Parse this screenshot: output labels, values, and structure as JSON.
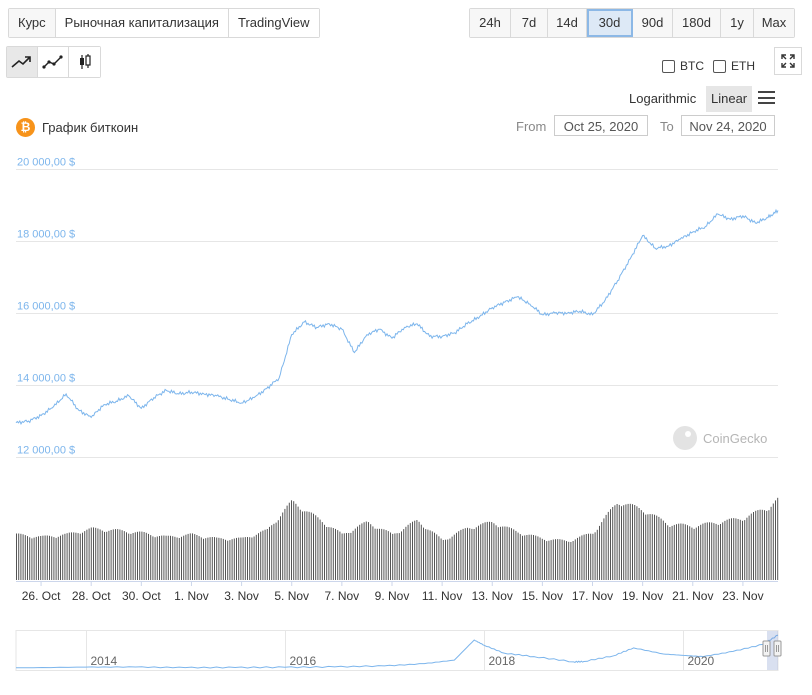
{
  "tabs": [
    {
      "label": "Курс",
      "selected": true
    },
    {
      "label": "Рыночная капитализация",
      "selected": false
    },
    {
      "label": "TradingView",
      "selected": false
    }
  ],
  "ranges": [
    {
      "label": "24h",
      "active": false
    },
    {
      "label": "7d",
      "active": false
    },
    {
      "label": "14d",
      "active": false
    },
    {
      "label": "30d",
      "active": true
    },
    {
      "label": "90d",
      "active": false
    },
    {
      "label": "180d",
      "active": false
    },
    {
      "label": "1y",
      "active": false
    },
    {
      "label": "Max",
      "active": false
    }
  ],
  "chart_type_icons": [
    "line-chart-icon",
    "point-line-chart-icon",
    "candlestick-icon"
  ],
  "compare": [
    {
      "label": "BTC",
      "checked": false
    },
    {
      "label": "ETH",
      "checked": false
    }
  ],
  "scale": {
    "log_label": "Logarithmic",
    "linear_label": "Linear",
    "selected": "Linear"
  },
  "coin": {
    "title": "График биткоин",
    "icon": "bitcoin-icon",
    "color": "#f7931a"
  },
  "date_range": {
    "from_label": "From",
    "from": "Oct 25, 2020",
    "to_label": "To",
    "to": "Nov 24, 2020"
  },
  "watermark": "CoinGecko",
  "colors": {
    "price_line": "#7cb5ec",
    "volume_bars": "#555555",
    "navigator_line": "#7cb5ec"
  },
  "chart_data": {
    "type": "line",
    "title": "",
    "xlabel": "",
    "ylabel": "",
    "y_ticks": [
      "20 000,00 $",
      "18 000,00 $",
      "16 000,00 $",
      "14 000,00 $",
      "12 000,00 $"
    ],
    "y_tick_values": [
      20000,
      18000,
      16000,
      14000,
      12000
    ],
    "ylim": [
      12000,
      20000
    ],
    "x_ticks": [
      "26. Oct",
      "28. Oct",
      "30. Oct",
      "1. Nov",
      "3. Nov",
      "5. Nov",
      "7. Nov",
      "9. Nov",
      "11. Nov",
      "13. Nov",
      "15. Nov",
      "17. Nov",
      "19. Nov",
      "21. Nov",
      "23. Nov"
    ],
    "x_tick_days": [
      1,
      3,
      5,
      7,
      9,
      11,
      13,
      15,
      17,
      19,
      21,
      23,
      25,
      27,
      29
    ],
    "xlim_days": [
      0,
      30.4
    ],
    "grid": true,
    "price_series": {
      "name": "",
      "days": [
        0,
        0.5,
        1,
        1.5,
        2,
        2.5,
        3,
        3.5,
        4,
        4.5,
        5,
        5.5,
        6,
        6.5,
        7,
        7.5,
        8,
        8.5,
        9,
        9.5,
        10,
        10.5,
        11,
        11.5,
        12,
        12.5,
        13,
        13.5,
        14,
        14.5,
        15,
        15.5,
        16,
        16.5,
        17,
        17.5,
        18,
        18.5,
        19,
        19.5,
        20,
        20.5,
        21,
        21.5,
        22,
        22.5,
        23,
        23.5,
        24,
        24.5,
        25,
        25.5,
        26,
        26.5,
        27,
        27.5,
        28,
        28.5,
        29,
        29.5,
        30,
        30.4
      ],
      "values": [
        12950,
        13000,
        13150,
        13400,
        13750,
        13300,
        13100,
        13450,
        13550,
        13700,
        13350,
        13650,
        13850,
        13750,
        13800,
        13750,
        13700,
        13600,
        13500,
        13650,
        13900,
        14200,
        15400,
        15750,
        15600,
        15700,
        15550,
        14900,
        15400,
        15550,
        15300,
        15600,
        15700,
        15350,
        15350,
        15450,
        15700,
        15900,
        16150,
        16300,
        16450,
        16250,
        15950,
        16000,
        16000,
        16050,
        15950,
        16350,
        16900,
        17500,
        18150,
        17800,
        17850,
        18050,
        18250,
        18400,
        18750,
        18600,
        18700,
        18500,
        18650,
        18850
      ]
    },
    "volume_series": {
      "name": "",
      "days": [
        0,
        1,
        2,
        3,
        4,
        5,
        6,
        7,
        8,
        9,
        10,
        11,
        12,
        13,
        14,
        15,
        16,
        17,
        18,
        19,
        20,
        21,
        22,
        23,
        24,
        25,
        26,
        27,
        28,
        29,
        30,
        30.4
      ],
      "relative_values": [
        0.55,
        0.52,
        0.55,
        0.62,
        0.6,
        0.57,
        0.52,
        0.55,
        0.5,
        0.5,
        0.6,
        0.95,
        0.75,
        0.55,
        0.7,
        0.55,
        0.72,
        0.48,
        0.63,
        0.7,
        0.58,
        0.5,
        0.47,
        0.57,
        0.95,
        0.85,
        0.68,
        0.65,
        0.7,
        0.75,
        0.88,
        0.98
      ]
    },
    "navigator": {
      "x_ticks": [
        "2014",
        "2016",
        "2018",
        "2020"
      ],
      "x_tick_years": [
        2014,
        2016,
        2018,
        2020
      ],
      "xlim_years": [
        2013.3,
        2020.95
      ],
      "years": [
        2013.3,
        2014,
        2014.5,
        2015,
        2015.5,
        2016,
        2016.5,
        2017,
        2017.4,
        2017.7,
        2017.9,
        2018,
        2018.2,
        2018.5,
        2018.9,
        2019,
        2019.3,
        2019.5,
        2019.8,
        2020,
        2020.2,
        2020.5,
        2020.8,
        2020.95
      ],
      "values": [
        100,
        500,
        550,
        250,
        280,
        420,
        650,
        1200,
        2500,
        4500,
        16000,
        13000,
        8500,
        6500,
        3500,
        3700,
        7000,
        11500,
        8000,
        7200,
        6500,
        9500,
        13500,
        18800
      ]
    }
  }
}
